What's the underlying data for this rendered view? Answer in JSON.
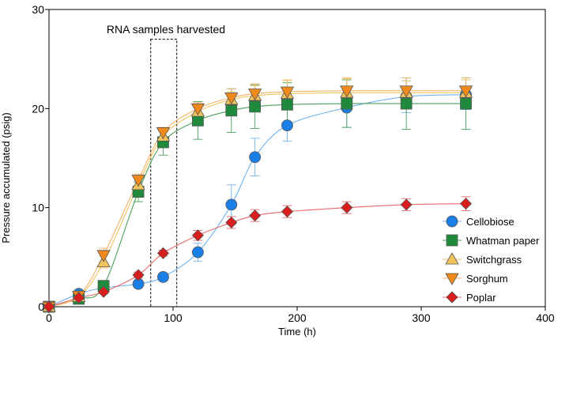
{
  "chart_data": {
    "type": "line",
    "xlabel": "Time (h)",
    "ylabel": "Pressure accumulated (psig)",
    "xlim": [
      0,
      400
    ],
    "ylim": [
      0,
      30
    ],
    "xticks": [
      0,
      100,
      200,
      300,
      400
    ],
    "yticks": [
      10,
      20,
      30
    ],
    "grid": false,
    "legend_position": "right",
    "annotation": {
      "text": "RNA samples harvested",
      "x_range": [
        82,
        103
      ],
      "y_range": [
        0,
        27
      ]
    },
    "series": [
      {
        "name": "Cellobiose",
        "marker": "circle",
        "color": "#1a7fe6",
        "line_color": "#6fb2ee",
        "x": [
          0,
          24,
          44,
          72,
          92,
          120,
          147,
          166,
          192,
          240,
          288,
          336
        ],
        "y": [
          0,
          1.3,
          1.9,
          2.3,
          3.0,
          5.5,
          10.3,
          15.1,
          18.3,
          20.1,
          21.2,
          21.4
        ],
        "err": [
          0.2,
          0.3,
          0.3,
          0.3,
          0.4,
          0.9,
          2.0,
          1.9,
          1.6,
          2.0,
          1.6,
          1.5
        ]
      },
      {
        "name": "Whatman paper",
        "marker": "square",
        "color": "#1f8a3c",
        "line_color": "#4c9e5c",
        "x": [
          0,
          24,
          44,
          72,
          92,
          120,
          147,
          166,
          192,
          240,
          288,
          336
        ],
        "y": [
          0,
          0.8,
          2.1,
          11.6,
          16.6,
          18.8,
          19.8,
          20.2,
          20.4,
          20.5,
          20.5,
          20.5
        ],
        "err": [
          0.2,
          0.3,
          0.5,
          1.0,
          1.3,
          1.9,
          2.2,
          2.2,
          2.2,
          2.4,
          2.6,
          2.6
        ]
      },
      {
        "name": "Switchgrass",
        "marker": "triangle-up",
        "color": "#f2c55c",
        "line_color": "#f2c55c",
        "x": [
          0,
          24,
          44,
          72,
          92,
          120,
          147,
          166,
          192,
          240,
          288,
          336
        ],
        "y": [
          0,
          1.0,
          4.5,
          12.3,
          17.2,
          19.7,
          20.9,
          21.3,
          21.5,
          21.6,
          21.6,
          21.6
        ],
        "err": [
          0.2,
          0.3,
          0.6,
          0.7,
          0.6,
          0.6,
          0.8,
          1.0,
          1.3,
          1.4,
          1.2,
          1.3
        ]
      },
      {
        "name": "Sorghum",
        "marker": "triangle-down",
        "color": "#f08a1c",
        "line_color": "#f5b26b",
        "x": [
          0,
          24,
          44,
          72,
          92,
          120,
          147,
          166,
          192,
          240,
          288,
          336
        ],
        "y": [
          0,
          1.1,
          5.2,
          12.8,
          17.6,
          20.0,
          21.1,
          21.5,
          21.7,
          21.8,
          21.8,
          21.8
        ],
        "err": [
          0.2,
          0.3,
          0.7,
          0.6,
          0.5,
          0.6,
          0.9,
          1.0,
          1.2,
          1.3,
          1.3,
          1.3
        ]
      },
      {
        "name": "Poplar",
        "marker": "diamond",
        "color": "#d91e1e",
        "line_color": "#e86a6a",
        "x": [
          0,
          24,
          44,
          72,
          92,
          120,
          147,
          166,
          192,
          240,
          288,
          336
        ],
        "y": [
          0,
          0.9,
          1.5,
          3.2,
          5.4,
          7.2,
          8.5,
          9.2,
          9.6,
          10.0,
          10.3,
          10.4
        ],
        "err": [
          0.1,
          0.2,
          0.2,
          0.3,
          0.3,
          0.5,
          0.6,
          0.6,
          0.6,
          0.6,
          0.6,
          0.7
        ]
      }
    ]
  }
}
